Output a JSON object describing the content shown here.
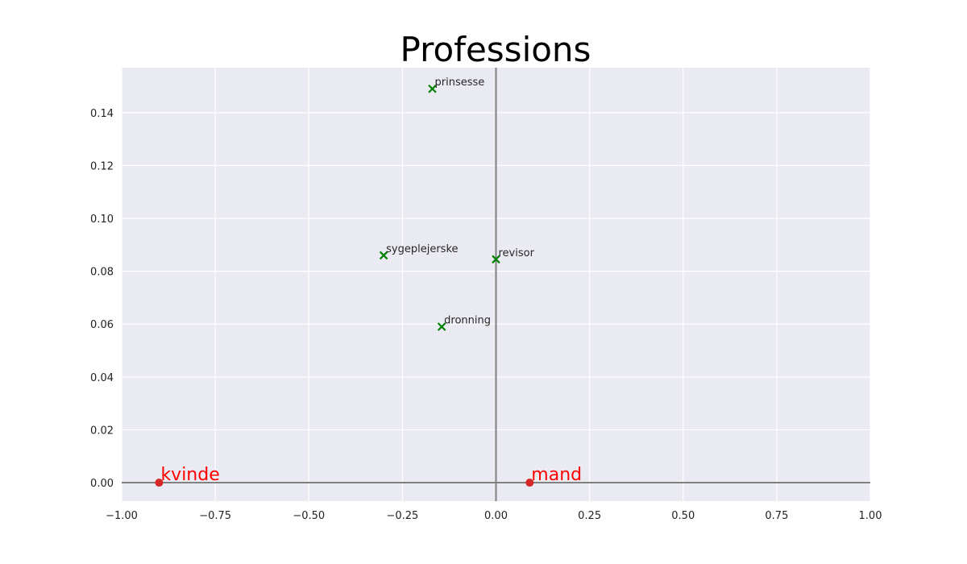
{
  "chart_data": {
    "type": "scatter",
    "title": "Professions",
    "xlabel": "",
    "ylabel": "",
    "xlim": [
      -1.0,
      1.0
    ],
    "ylim": [
      -0.007,
      0.157
    ],
    "grid": true,
    "background_color": "#eaeaf2",
    "axis_line_color": "#808080",
    "xticks": [
      -1.0,
      -0.75,
      -0.5,
      -0.25,
      0.0,
      0.25,
      0.5,
      0.75,
      1.0
    ],
    "xtick_labels": [
      "−1.00",
      "−0.75",
      "−0.50",
      "−0.25",
      "0.00",
      "0.25",
      "0.50",
      "0.75",
      "1.00"
    ],
    "yticks": [
      0.0,
      0.02,
      0.04,
      0.06,
      0.08,
      0.1,
      0.12,
      0.14
    ],
    "ytick_labels": [
      "0.00",
      "0.02",
      "0.04",
      "0.06",
      "0.08",
      "0.10",
      "0.12",
      "0.14"
    ],
    "series": [
      {
        "marker": "x",
        "color": "#008000",
        "points": [
          {
            "label": "prinsesse",
            "x": -0.17,
            "y": 0.149
          },
          {
            "label": "sygeplejerske",
            "x": -0.3,
            "y": 0.086
          },
          {
            "label": "revisor",
            "x": 0.0,
            "y": 0.0845
          },
          {
            "label": "dronning",
            "x": -0.145,
            "y": 0.059
          }
        ]
      },
      {
        "marker": "o",
        "color": "#d62728",
        "label_color": "#ff0000",
        "points": [
          {
            "label": "kvinde",
            "x": -0.9,
            "y": 0.0
          },
          {
            "label": "mand",
            "x": 0.09,
            "y": 0.0
          }
        ]
      }
    ]
  }
}
